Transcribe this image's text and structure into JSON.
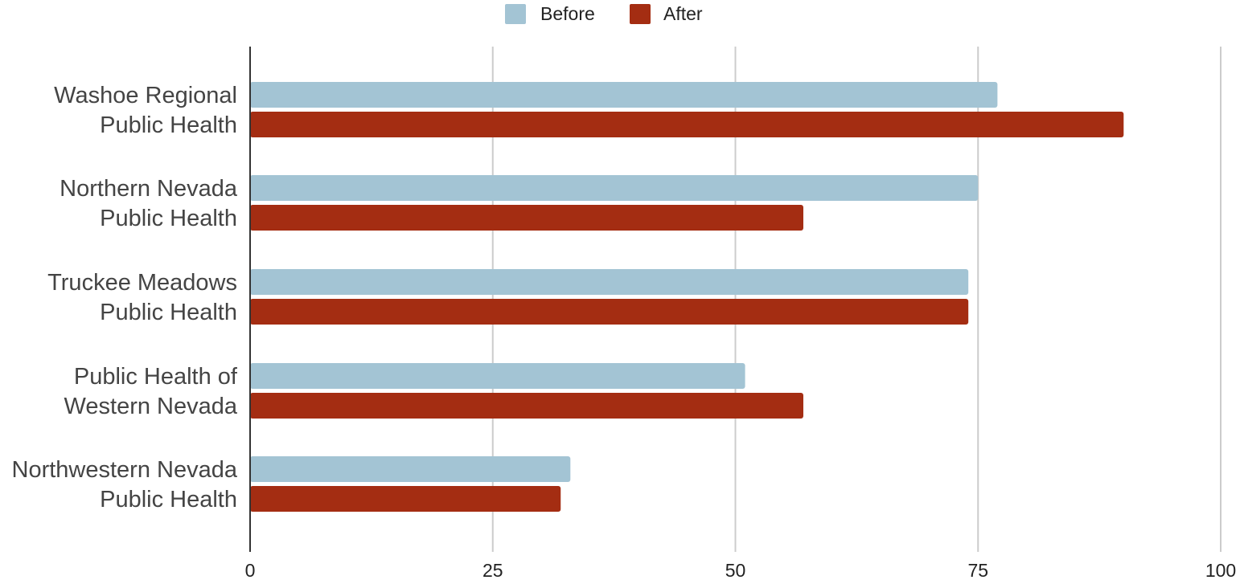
{
  "chart_data": {
    "type": "bar",
    "orientation": "horizontal",
    "categories": [
      [
        "Washoe Regional",
        "Public Health"
      ],
      [
        "Northern Nevada",
        "Public Health"
      ],
      [
        "Truckee Meadows",
        "Public Health"
      ],
      [
        "Public Health of",
        "Western Nevada"
      ],
      [
        "Northwestern Nevada",
        "Public Health"
      ]
    ],
    "series": [
      {
        "name": "Before",
        "color": "#a3c4d4",
        "values": [
          77,
          75,
          74,
          51,
          33
        ]
      },
      {
        "name": "After",
        "color": "#a42d12",
        "values": [
          90,
          57,
          74,
          57,
          32
        ]
      }
    ],
    "xlim": [
      0,
      100
    ],
    "xticks": [
      "0",
      "25",
      "50",
      "75",
      "100"
    ],
    "grid": true,
    "legend_position": "top"
  }
}
